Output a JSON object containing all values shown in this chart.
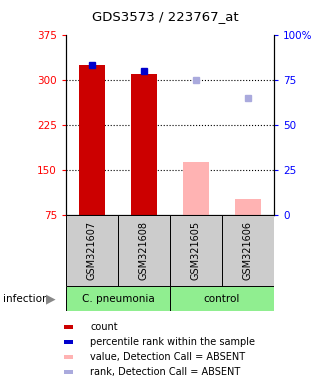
{
  "title": "GDS3573 / 223767_at",
  "samples": [
    "GSM321607",
    "GSM321608",
    "GSM321605",
    "GSM321606"
  ],
  "group_labels": [
    "C. pneumonia",
    "control"
  ],
  "bar_values": [
    325,
    310,
    null,
    null
  ],
  "bar_absent_values": [
    null,
    null,
    163,
    102
  ],
  "percentile_present": [
    83,
    80,
    null,
    null
  ],
  "percentile_absent": [
    null,
    null,
    75,
    65
  ],
  "ylim_left": [
    75,
    375
  ],
  "ylim_right": [
    0,
    100
  ],
  "yticks_left": [
    75,
    150,
    225,
    300,
    375
  ],
  "yticks_right": [
    0,
    25,
    50,
    75,
    100
  ],
  "ytick_labels_right": [
    "0",
    "25",
    "50",
    "75",
    "100%"
  ],
  "bar_color": "#cc0000",
  "bar_absent_color": "#ffb3b3",
  "percentile_color": "#0000cc",
  "percentile_absent_color": "#aaaadd",
  "legend_items": [
    {
      "label": "count",
      "color": "#cc0000"
    },
    {
      "label": "percentile rank within the sample",
      "color": "#0000cc"
    },
    {
      "label": "value, Detection Call = ABSENT",
      "color": "#ffb3b3"
    },
    {
      "label": "rank, Detection Call = ABSENT",
      "color": "#aaaadd"
    }
  ],
  "infection_label": "infection",
  "sample_box_color": "#cccccc",
  "group_box_color": "#90EE90"
}
